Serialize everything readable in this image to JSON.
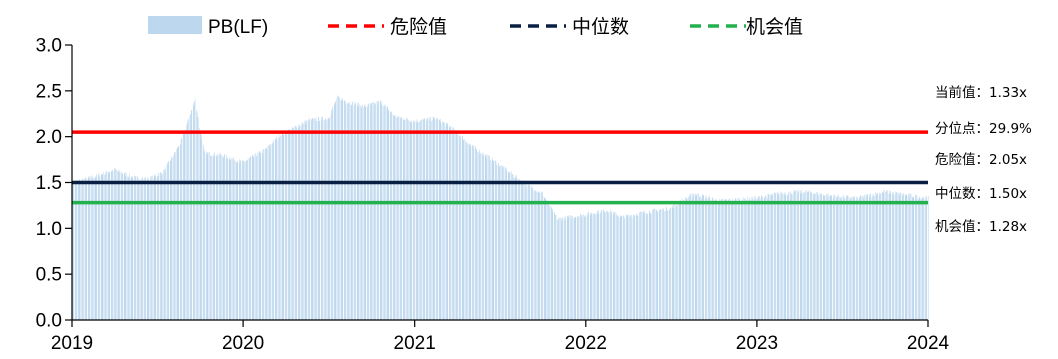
{
  "chart_data": {
    "type": "bar",
    "x_range": [
      "2019-01-01",
      "2024-01-01"
    ],
    "x_ticks": [
      "2019",
      "2020",
      "2021",
      "2022",
      "2023",
      "2024"
    ],
    "y_ticks": [
      "0.0",
      "0.5",
      "1.0",
      "1.5",
      "2.0",
      "2.5",
      "3.0"
    ],
    "ylim": [
      0,
      3.0
    ],
    "grid": false,
    "legend_position": "top",
    "series": [
      {
        "name": "PB(LF)",
        "kind": "bar",
        "color": "#bdd7ee",
        "anchors": [
          [
            "2019-01-01",
            1.5
          ],
          [
            "2019-02-15",
            1.56
          ],
          [
            "2019-04-01",
            1.64
          ],
          [
            "2019-05-15",
            1.55
          ],
          [
            "2019-06-15",
            1.54
          ],
          [
            "2019-07-15",
            1.62
          ],
          [
            "2019-08-20",
            1.93
          ],
          [
            "2019-09-20",
            2.4
          ],
          [
            "2019-10-10",
            1.82
          ],
          [
            "2019-11-15",
            1.8
          ],
          [
            "2019-12-31",
            1.72
          ],
          [
            "2020-02-15",
            1.85
          ],
          [
            "2020-03-20",
            2.02
          ],
          [
            "2020-04-20",
            2.1
          ],
          [
            "2020-05-20",
            2.18
          ],
          [
            "2020-06-30",
            2.2
          ],
          [
            "2020-07-20",
            2.43
          ],
          [
            "2020-08-10",
            2.38
          ],
          [
            "2020-09-15",
            2.33
          ],
          [
            "2020-10-20",
            2.38
          ],
          [
            "2020-11-20",
            2.22
          ],
          [
            "2020-12-31",
            2.17
          ],
          [
            "2021-02-15",
            2.2
          ],
          [
            "2021-03-20",
            2.1
          ],
          [
            "2021-05-01",
            1.9
          ],
          [
            "2021-06-15",
            1.75
          ],
          [
            "2021-07-20",
            1.62
          ],
          [
            "2021-08-20",
            1.5
          ],
          [
            "2021-09-30",
            1.38
          ],
          [
            "2021-11-01",
            1.1
          ],
          [
            "2021-12-31",
            1.15
          ],
          [
            "2022-02-15",
            1.2
          ],
          [
            "2022-03-20",
            1.12
          ],
          [
            "2022-04-30",
            1.17
          ],
          [
            "2022-06-30",
            1.22
          ],
          [
            "2022-08-20",
            1.38
          ],
          [
            "2022-10-10",
            1.3
          ],
          [
            "2022-12-31",
            1.33
          ],
          [
            "2023-02-15",
            1.38
          ],
          [
            "2023-04-15",
            1.4
          ],
          [
            "2023-06-01",
            1.36
          ],
          [
            "2023-08-01",
            1.33
          ],
          [
            "2023-10-01",
            1.4
          ],
          [
            "2023-11-20",
            1.36
          ],
          [
            "2023-12-31",
            1.33
          ]
        ]
      },
      {
        "name": "危险值",
        "kind": "hline",
        "value": 2.05,
        "color": "#ff0000"
      },
      {
        "name": "中位数",
        "kind": "hline",
        "value": 1.5,
        "color": "#0a1f44"
      },
      {
        "name": "机会值",
        "kind": "hline",
        "value": 1.28,
        "color": "#22b14c"
      }
    ],
    "annotations": [
      {
        "label": "当前值：",
        "value": "1.33x"
      },
      {
        "label": "分位点：",
        "value": "29.9%"
      },
      {
        "label": "危险值：",
        "value": "2.05x"
      },
      {
        "label": "中位数：",
        "value": "1.50x"
      },
      {
        "label": "机会值：",
        "value": "1.28x"
      }
    ]
  }
}
